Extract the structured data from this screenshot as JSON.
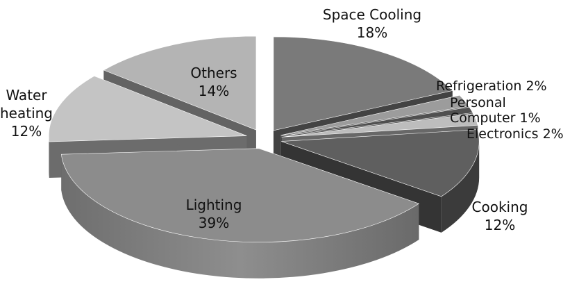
{
  "chart_data": {
    "type": "pie",
    "style": "3d-exploded",
    "slices": [
      {
        "name": "Space Cooling",
        "value": 18,
        "label": "18%"
      },
      {
        "name": "Refrigeration",
        "value": 2,
        "label": "2%"
      },
      {
        "name": "Personal Computer",
        "value": 1,
        "label": "1%"
      },
      {
        "name": "Electronics",
        "value": 2,
        "label": "2%"
      },
      {
        "name": "Cooking",
        "value": 12,
        "label": "12%"
      },
      {
        "name": "Lighting",
        "value": 39,
        "label": "39%"
      },
      {
        "name": "Water heating",
        "value": 12,
        "label": "12%"
      },
      {
        "name": "Others",
        "value": 14,
        "label": "14%"
      }
    ],
    "colors": {
      "Space Cooling": "#7a7a7a",
      "Refrigeration": "#9c9c9c",
      "Personal Computer": "#505050",
      "Electronics": "#bdbdbd",
      "Cooking": "#5f5f5f",
      "Lighting": "#8c8c8c",
      "Water heating": "#c4c4c4",
      "Others": "#b4b4b4"
    },
    "label_lines": {
      "Space Cooling": [
        "Space Cooling",
        "18%"
      ],
      "Refrigeration": [
        "Refrigeration 2%"
      ],
      "Personal Computer": [
        "Personal",
        "Computer  1%"
      ],
      "Electronics": [
        "Electronics  2%"
      ],
      "Cooking": [
        "Cooking",
        "12%"
      ],
      "Lighting": [
        "Lighting",
        "39%"
      ],
      "Water heating": [
        "Water",
        "heating",
        "12%"
      ],
      "Others": [
        "Others",
        "14%"
      ]
    },
    "legend": "none"
  }
}
